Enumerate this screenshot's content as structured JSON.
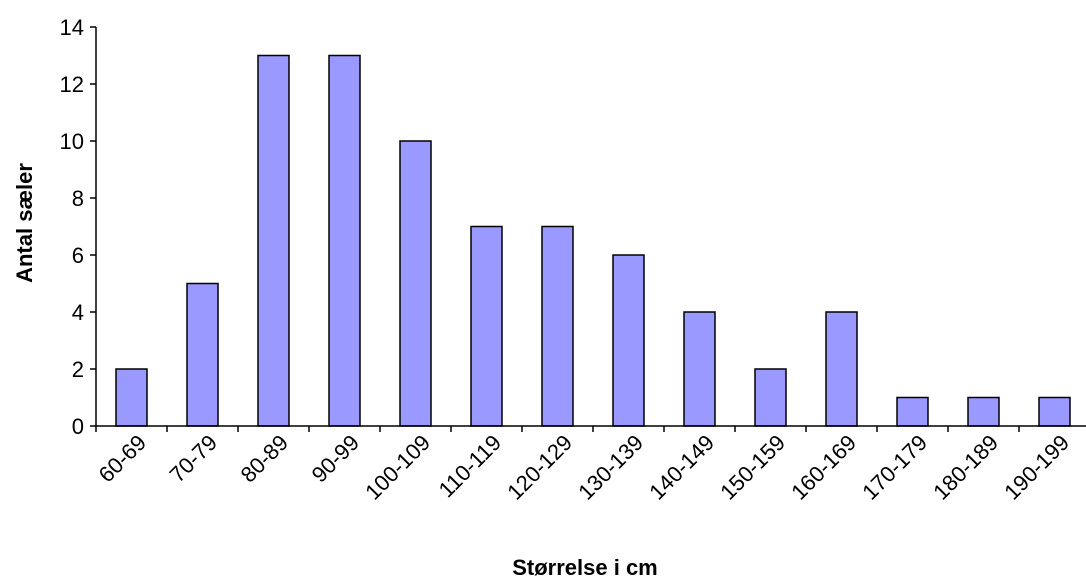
{
  "chart_data": {
    "type": "bar",
    "title": "",
    "xlabel": "Størrelse i cm",
    "ylabel": "Antal sæler",
    "categories": [
      "60-69",
      "70-79",
      "80-89",
      "90-99",
      "100-109",
      "110-119",
      "120-129",
      "130-139",
      "140-149",
      "150-159",
      "160-169",
      "170-179",
      "180-189",
      "190-199"
    ],
    "values": [
      2,
      5,
      13,
      13,
      10,
      7,
      7,
      6,
      4,
      2,
      4,
      1,
      1,
      1
    ],
    "ylim": [
      0,
      14
    ],
    "yticks": [
      0,
      2,
      4,
      6,
      8,
      10,
      12,
      14
    ],
    "grid": false,
    "legend": "none",
    "colors": {
      "bar_fill": "#9999FF",
      "bar_stroke": "#000000",
      "axis": "#000000",
      "background": "#FFFFFF"
    }
  }
}
